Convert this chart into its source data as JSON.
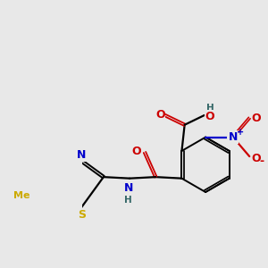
{
  "background_color": "#e8e8e8",
  "fig_size": [
    3.0,
    3.0
  ],
  "dpi": 100,
  "bond_lw": 1.6,
  "double_sep": 0.025,
  "colors": {
    "C": "#000000",
    "N": "#0000cc",
    "O": "#cc0000",
    "S": "#ccaa00",
    "H": "#336666"
  }
}
